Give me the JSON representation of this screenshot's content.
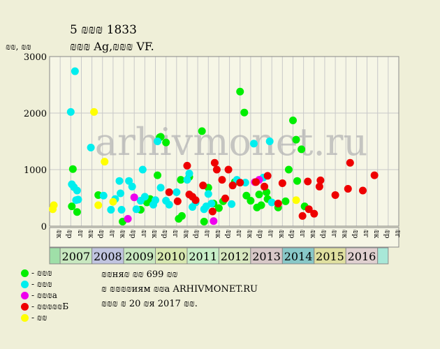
{
  "title": "5 ₪₪₪ 1833",
  "subtitle": "₪₪₪ Ag,₪₪₪ VF.",
  "legend": [
    {
      "label": "- ₪₪₪",
      "color": "#00ee00"
    },
    {
      "label": "- ₪₪₪",
      "color": "#00eeee"
    },
    {
      "label": "- ₪₪₪a",
      "color": "#ee00ee"
    },
    {
      "label": "- ₪₪₪₪₪Б",
      "color": "#ee0000"
    },
    {
      "label": "- ₪₪",
      "color": "#ffff00"
    }
  ],
  "footer": [
    "₪₪ня₪ ₪₪ 699 ₪₪",
    "₪ ₪₪₪₪иям ₪₪a ARHIVMONET.RU",
    "₪₪₪ ₪ 20 ₪я 2017 ₪₪."
  ],
  "watermark": "arhivmonet.ru",
  "chart_data": {
    "type": "scatter",
    "ylabel": "₪₪, ₪₪",
    "ylim": [
      0,
      3000
    ],
    "yticks": [
      0,
      1000,
      2000,
      3000
    ],
    "x_units": "month slots (3 per year: ₪к, ₪р, ₪г), index 0 = 2007 first slot",
    "xlim": [
      -3,
      30
    ],
    "slot_labels": [
      "₪к",
      "₪р",
      "₪г",
      "₪к",
      "₪р",
      "₪г",
      "₪к",
      "₪р",
      "₪г",
      "₪к",
      "₪р",
      "₪г",
      "₪к",
      "₪р",
      "₪г",
      "₪к",
      "₪р",
      "₪г",
      "₪к",
      "₪р",
      "₪г",
      "₪к",
      "₪р",
      "₪г",
      "₪к",
      "₪р",
      "₪г",
      "₪к",
      "₪р",
      "₪г",
      "₪к",
      "₪р",
      "₪г"
    ],
    "years": [
      {
        "label": "",
        "start": -3,
        "end": -2,
        "color": "#9fdfa8"
      },
      {
        "label": "2007",
        "start": -2,
        "end": 1,
        "color": "#c8e8c0"
      },
      {
        "label": "2008",
        "start": 1,
        "end": 4,
        "color": "#c0c4e0"
      },
      {
        "label": "2009",
        "start": 4,
        "end": 7,
        "color": "#c8e8c0"
      },
      {
        "label": "2010",
        "start": 7,
        "end": 10,
        "color": "#d8e8b0"
      },
      {
        "label": "2011",
        "start": 10,
        "end": 13,
        "color": "#c8eec8"
      },
      {
        "label": "2012",
        "start": 13,
        "end": 16,
        "color": "#d8e8c0"
      },
      {
        "label": "2013",
        "start": 16,
        "end": 19,
        "color": "#d8c8c8"
      },
      {
        "label": "2014",
        "start": 19,
        "end": 22,
        "color": "#88c8c8"
      },
      {
        "label": "2015",
        "start": 22,
        "end": 25,
        "color": "#e0e0a0"
      },
      {
        "label": "2016",
        "start": 25,
        "end": 28,
        "color": "#e0d0d0"
      },
      {
        "label": "",
        "start": 28,
        "end": 29,
        "color": "#a8e8d8"
      }
    ],
    "series": [
      {
        "name": "- ₪₪₪",
        "color": "#00ee00",
        "points": [
          [
            -0.9,
            350
          ],
          [
            -0.8,
            1010
          ],
          [
            -0.4,
            250
          ],
          [
            1.6,
            550
          ],
          [
            3.9,
            80
          ],
          [
            5.6,
            290
          ],
          [
            6.2,
            420
          ],
          [
            6.5,
            480
          ],
          [
            7.2,
            900
          ],
          [
            7.4,
            1570
          ],
          [
            7.5,
            1580
          ],
          [
            8.0,
            1480
          ],
          [
            9.2,
            130
          ],
          [
            9.4,
            820
          ],
          [
            9.5,
            180
          ],
          [
            10.2,
            870
          ],
          [
            11.4,
            1680
          ],
          [
            11.6,
            80
          ],
          [
            12.0,
            680
          ],
          [
            12.5,
            400
          ],
          [
            13.0,
            320
          ],
          [
            13.4,
            440
          ],
          [
            14.5,
            780
          ],
          [
            15.0,
            2380
          ],
          [
            15.4,
            2010
          ],
          [
            15.6,
            540
          ],
          [
            16.0,
            450
          ],
          [
            16.6,
            330
          ],
          [
            16.8,
            560
          ],
          [
            17.0,
            370
          ],
          [
            17.5,
            600
          ],
          [
            17.6,
            480
          ],
          [
            18.6,
            330
          ],
          [
            19.3,
            440
          ],
          [
            19.6,
            1000
          ],
          [
            20.0,
            1870
          ],
          [
            20.3,
            1530
          ],
          [
            20.4,
            800
          ],
          [
            20.8,
            1360
          ],
          [
            21.1,
            350
          ]
        ]
      },
      {
        "name": "- ₪₪₪",
        "color": "#00eeee",
        "points": [
          [
            -1.0,
            2020
          ],
          [
            -0.9,
            740
          ],
          [
            -0.6,
            2740
          ],
          [
            -0.7,
            690
          ],
          [
            -0.5,
            460
          ],
          [
            -0.4,
            630
          ],
          [
            -0.3,
            470
          ],
          [
            0.9,
            1390
          ],
          [
            2.1,
            540
          ],
          [
            2.8,
            290
          ],
          [
            3.2,
            480
          ],
          [
            3.6,
            800
          ],
          [
            3.8,
            290
          ],
          [
            3.7,
            580
          ],
          [
            4.5,
            800
          ],
          [
            4.8,
            700
          ],
          [
            5.2,
            300
          ],
          [
            5.6,
            450
          ],
          [
            5.8,
            1000
          ],
          [
            6.0,
            520
          ],
          [
            6.8,
            380
          ],
          [
            7.0,
            460
          ],
          [
            7.2,
            1500
          ],
          [
            7.5,
            680
          ],
          [
            8.0,
            450
          ],
          [
            8.3,
            380
          ],
          [
            9.0,
            600
          ],
          [
            10.0,
            820
          ],
          [
            10.2,
            930
          ],
          [
            10.5,
            340
          ],
          [
            10.8,
            420
          ],
          [
            11.6,
            300
          ],
          [
            11.8,
            350
          ],
          [
            12.0,
            570
          ],
          [
            12.3,
            400
          ],
          [
            14.2,
            390
          ],
          [
            14.7,
            820
          ],
          [
            15.5,
            770
          ],
          [
            16.3,
            1460
          ],
          [
            17.2,
            860
          ],
          [
            17.8,
            1500
          ],
          [
            18.0,
            420
          ]
        ]
      },
      {
        "name": "- ₪₪₪a",
        "color": "#ee00ee",
        "points": [
          [
            4.4,
            130
          ],
          [
            5.0,
            510
          ],
          [
            12.5,
            90
          ],
          [
            16.4,
            780
          ],
          [
            16.8,
            820
          ]
        ]
      },
      {
        "name": "- ₪₪₪₪₪Б",
        "color": "#ee0000",
        "points": [
          [
            8.3,
            600
          ],
          [
            9.1,
            440
          ],
          [
            10.0,
            1070
          ],
          [
            10.2,
            560
          ],
          [
            10.5,
            520
          ],
          [
            10.8,
            460
          ],
          [
            11.5,
            720
          ],
          [
            12.4,
            260
          ],
          [
            12.6,
            1120
          ],
          [
            12.8,
            1000
          ],
          [
            13.3,
            820
          ],
          [
            13.6,
            490
          ],
          [
            13.9,
            1000
          ],
          [
            14.3,
            720
          ],
          [
            15.0,
            770
          ],
          [
            16.5,
            780
          ],
          [
            17.3,
            700
          ],
          [
            17.6,
            890
          ],
          [
            18.6,
            400
          ],
          [
            19.0,
            760
          ],
          [
            20.9,
            180
          ],
          [
            21.4,
            790
          ],
          [
            21.5,
            300
          ],
          [
            22.0,
            220
          ],
          [
            22.5,
            700
          ],
          [
            22.6,
            810
          ],
          [
            24.0,
            550
          ],
          [
            25.2,
            660
          ],
          [
            25.4,
            1120
          ],
          [
            26.6,
            630
          ],
          [
            27.7,
            900
          ]
        ]
      },
      {
        "name": "- ₪₪",
        "color": "#ffff00",
        "points": [
          [
            -2.7,
            300
          ],
          [
            -2.6,
            370
          ],
          [
            1.2,
            2020
          ],
          [
            1.6,
            370
          ],
          [
            2.2,
            1140
          ],
          [
            3.0,
            430
          ],
          [
            20.3,
            460
          ]
        ]
      }
    ]
  }
}
